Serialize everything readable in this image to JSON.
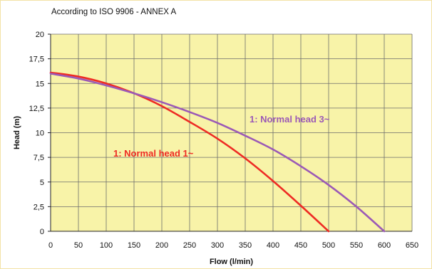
{
  "chart_data": {
    "type": "line",
    "subtitle": "According to ISO 9906 - ANNEX A",
    "xlabel": "Flow (l/min)",
    "ylabel": "Head (m)",
    "xlim": [
      0,
      650
    ],
    "ylim": [
      0,
      20
    ],
    "xticks": [
      "0",
      "50",
      "100",
      "150",
      "200",
      "250",
      "300",
      "350",
      "400",
      "450",
      "500",
      "550",
      "600",
      "650"
    ],
    "yticks": [
      "0",
      "2,5",
      "5",
      "7,5",
      "10",
      "12,5",
      "15",
      "17,5",
      "20"
    ],
    "grid": true,
    "plot_background": "#f8f3a8",
    "series": [
      {
        "name": "1: Normal head 1~",
        "color": "#ee2b24",
        "x": [
          0,
          50,
          100,
          150,
          200,
          250,
          300,
          350,
          400,
          450,
          500
        ],
        "y": [
          16.1,
          15.7,
          15.0,
          14.0,
          12.7,
          11.1,
          9.4,
          7.4,
          5.1,
          2.6,
          0
        ]
      },
      {
        "name": "1: Normal head 3~",
        "color": "#9b59b6",
        "x": [
          0,
          50,
          100,
          150,
          200,
          250,
          300,
          350,
          400,
          450,
          500,
          550,
          600
        ],
        "y": [
          16.0,
          15.5,
          14.8,
          14.0,
          13.1,
          12.1,
          11.0,
          9.7,
          8.3,
          6.6,
          4.7,
          2.5,
          0
        ]
      }
    ]
  }
}
